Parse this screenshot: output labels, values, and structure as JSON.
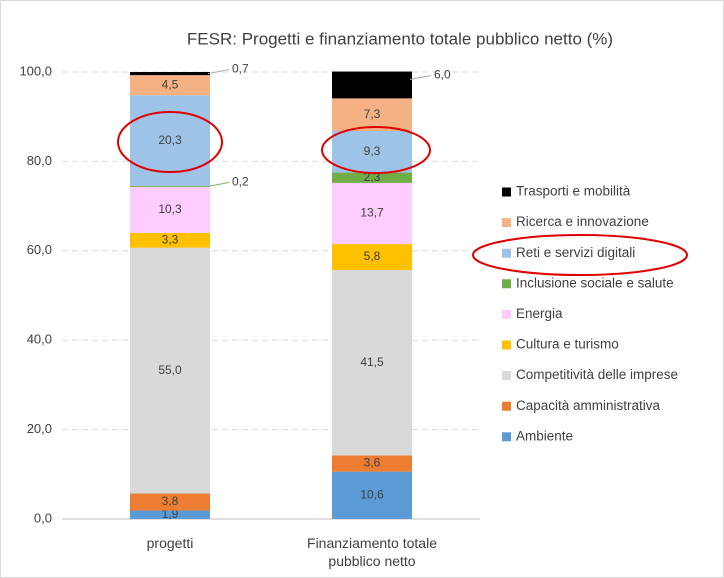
{
  "chart_data": {
    "type": "stacked_bar",
    "title": "FESR: Progetti e finanziamento totale pubblico netto (%)",
    "categories": [
      "progetti",
      "Finanziamento totale pubblico netto"
    ],
    "series": [
      {
        "name": "Ambiente",
        "color": "#5b9bd5",
        "values": [
          1.9,
          10.6
        ],
        "value_labels": [
          "1,9",
          "10,6"
        ]
      },
      {
        "name": "Capacità amministrativa",
        "color": "#ed7d31",
        "values": [
          3.8,
          3.6
        ],
        "value_labels": [
          "3,8",
          "3,6"
        ]
      },
      {
        "name": "Competitività delle imprese",
        "color": "#d9d9d9",
        "values": [
          55.0,
          41.5
        ],
        "value_labels": [
          "55,0",
          "41,5"
        ]
      },
      {
        "name": "Cultura e turismo",
        "color": "#ffc000",
        "values": [
          3.3,
          5.8
        ],
        "value_labels": [
          "3,3",
          "5,8"
        ]
      },
      {
        "name": "Energia",
        "color": "#ffccff",
        "values": [
          10.3,
          13.7
        ],
        "value_labels": [
          "10,3",
          "13,7"
        ]
      },
      {
        "name": "Inclusione sociale e salute",
        "color": "#70ad47",
        "values": [
          0.2,
          2.3
        ],
        "value_labels": [
          "0,2",
          "2,3"
        ]
      },
      {
        "name": "Reti e servizi digitali",
        "color": "#9dc3e6",
        "values": [
          20.3,
          9.3
        ],
        "value_labels": [
          "20,3",
          "9,3"
        ]
      },
      {
        "name": "Ricerca e innovazione",
        "color": "#f4b183",
        "values": [
          4.5,
          7.3
        ],
        "value_labels": [
          "4,5",
          "7,3"
        ]
      },
      {
        "name": "Trasporti e mobilità",
        "color": "#000000",
        "values": [
          0.7,
          6.0
        ],
        "value_labels": [
          "0,7",
          "6,0"
        ]
      }
    ],
    "ylim": [
      0,
      100
    ],
    "yticks": [
      {
        "value": 0,
        "label": "0,0"
      },
      {
        "value": 20,
        "label": "20,0"
      },
      {
        "value": 40,
        "label": "40,0"
      },
      {
        "value": 60,
        "label": "60,0"
      },
      {
        "value": 80,
        "label": "80,0"
      },
      {
        "value": 100,
        "label": "100,0"
      }
    ],
    "grid": true,
    "legend": "right"
  }
}
